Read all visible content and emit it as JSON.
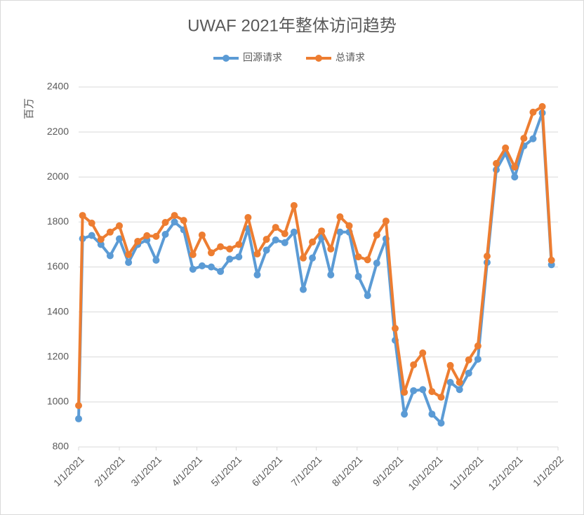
{
  "chart_data": {
    "type": "line",
    "title": "UWAF 2021年整体访问趋势",
    "y_label": "百万",
    "x": [
      "2021-01-01",
      "2021-01-04",
      "2021-01-11",
      "2021-01-18",
      "2021-01-25",
      "2021-02-01",
      "2021-02-08",
      "2021-02-15",
      "2021-02-22",
      "2021-03-01",
      "2021-03-08",
      "2021-03-15",
      "2021-03-22",
      "2021-03-29",
      "2021-04-05",
      "2021-04-12",
      "2021-04-19",
      "2021-04-26",
      "2021-05-03",
      "2021-05-10",
      "2021-05-17",
      "2021-05-24",
      "2021-05-31",
      "2021-06-07",
      "2021-06-14",
      "2021-06-21",
      "2021-06-28",
      "2021-07-05",
      "2021-07-12",
      "2021-07-19",
      "2021-07-26",
      "2021-08-02",
      "2021-08-09",
      "2021-08-16",
      "2021-08-23",
      "2021-08-30",
      "2021-09-06",
      "2021-09-13",
      "2021-09-20",
      "2021-09-27",
      "2021-10-04",
      "2021-10-11",
      "2021-10-18",
      "2021-10-25",
      "2021-11-01",
      "2021-11-08",
      "2021-11-15",
      "2021-11-22",
      "2021-11-29",
      "2021-12-06",
      "2021-12-13",
      "2021-12-20",
      "2021-12-27"
    ],
    "series": [
      {
        "name": "回源请求",
        "color": "#5b9bd5",
        "values": [
          925,
          1726,
          1740,
          1700,
          1650,
          1725,
          1620,
          1700,
          1720,
          1630,
          1745,
          1800,
          1765,
          1590,
          1605,
          1600,
          1580,
          1635,
          1645,
          1770,
          1565,
          1675,
          1720,
          1708,
          1755,
          1500,
          1640,
          1730,
          1565,
          1755,
          1755,
          1558,
          1473,
          1617,
          1725,
          1274,
          946,
          1050,
          1055,
          946,
          906,
          1087,
          1055,
          1128,
          1190,
          1620,
          2032,
          2105,
          2000,
          2138,
          2170,
          2285,
          1610
        ]
      },
      {
        "name": "总请求",
        "color": "#ed7d31",
        "values": [
          984,
          1829,
          1795,
          1723,
          1755,
          1783,
          1655,
          1714,
          1739,
          1736,
          1798,
          1829,
          1807,
          1655,
          1742,
          1663,
          1690,
          1680,
          1700,
          1820,
          1658,
          1723,
          1776,
          1748,
          1873,
          1640,
          1711,
          1760,
          1680,
          1823,
          1783,
          1645,
          1632,
          1742,
          1804,
          1327,
          1043,
          1165,
          1218,
          1046,
          1021,
          1162,
          1087,
          1187,
          1249,
          1648,
          2060,
          2129,
          2044,
          2172,
          2288,
          2313,
          1630
        ]
      }
    ],
    "xlim": [
      "2021-01-01",
      "2022-01-01"
    ],
    "xticks": [
      {
        "value": "2021-01-01",
        "label": "1/1/2021"
      },
      {
        "value": "2021-02-01",
        "label": "2/1/2021"
      },
      {
        "value": "2021-03-01",
        "label": "3/1/2021"
      },
      {
        "value": "2021-04-01",
        "label": "4/1/2021"
      },
      {
        "value": "2021-05-01",
        "label": "5/1/2021"
      },
      {
        "value": "2021-06-01",
        "label": "6/1/2021"
      },
      {
        "value": "2021-07-01",
        "label": "7/1/2021"
      },
      {
        "value": "2021-08-01",
        "label": "8/1/2021"
      },
      {
        "value": "2021-09-01",
        "label": "9/1/2021"
      },
      {
        "value": "2021-10-01",
        "label": "10/1/2021"
      },
      {
        "value": "2021-11-01",
        "label": "11/1/2021"
      },
      {
        "value": "2021-12-01",
        "label": "12/1/2021"
      },
      {
        "value": "2022-01-01",
        "label": "1/1/2022"
      }
    ],
    "ylim": [
      800,
      2400
    ],
    "yticks": [
      800,
      1000,
      1200,
      1400,
      1600,
      1800,
      2000,
      2200,
      2400
    ],
    "grid": true,
    "legend": "top"
  }
}
